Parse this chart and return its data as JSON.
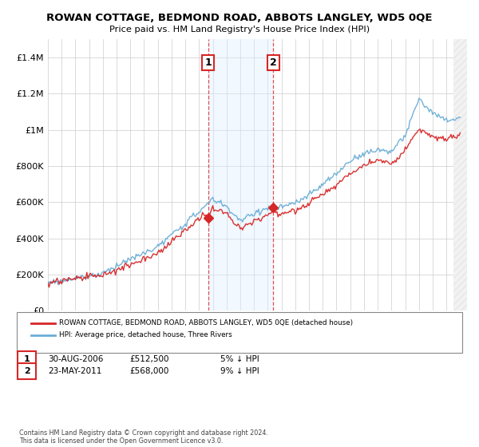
{
  "title": "ROWAN COTTAGE, BEDMOND ROAD, ABBOTS LANGLEY, WD5 0QE",
  "subtitle": "Price paid vs. HM Land Registry's House Price Index (HPI)",
  "legend_line1": "ROWAN COTTAGE, BEDMOND ROAD, ABBOTS LANGLEY, WD5 0QE (detached house)",
  "legend_line2": "HPI: Average price, detached house, Three Rivers",
  "annotation1_date": "30-AUG-2006",
  "annotation1_price": "£512,500",
  "annotation1_pct": "5% ↓ HPI",
  "annotation2_date": "23-MAY-2011",
  "annotation2_price": "£568,000",
  "annotation2_pct": "9% ↓ HPI",
  "footer": "Contains HM Land Registry data © Crown copyright and database right 2024.\nThis data is licensed under the Open Government Licence v3.0.",
  "sale1_year": 2006.664,
  "sale1_value": 512500,
  "sale2_year": 2011.388,
  "sale2_value": 568000,
  "hpi_color": "#6baed6",
  "price_color": "#d62728",
  "shade_color": "#ddeeff",
  "annotation_box_color": "#d62728",
  "ylim_max": 1500000,
  "ylim_min": 0,
  "xlim_min": 1995.0,
  "xlim_max": 2025.5,
  "hatch_start": 2024.5
}
